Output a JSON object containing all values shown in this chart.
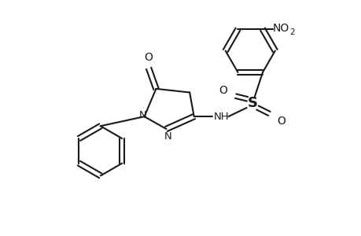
{
  "bg_color": "#ffffff",
  "line_color": "#1a1a1a",
  "line_width": 1.5,
  "fig_width": 4.6,
  "fig_height": 3.0,
  "dpi": 100,
  "xlim": [
    -0.2,
    4.4
  ],
  "ylim": [
    -0.1,
    3.1
  ]
}
